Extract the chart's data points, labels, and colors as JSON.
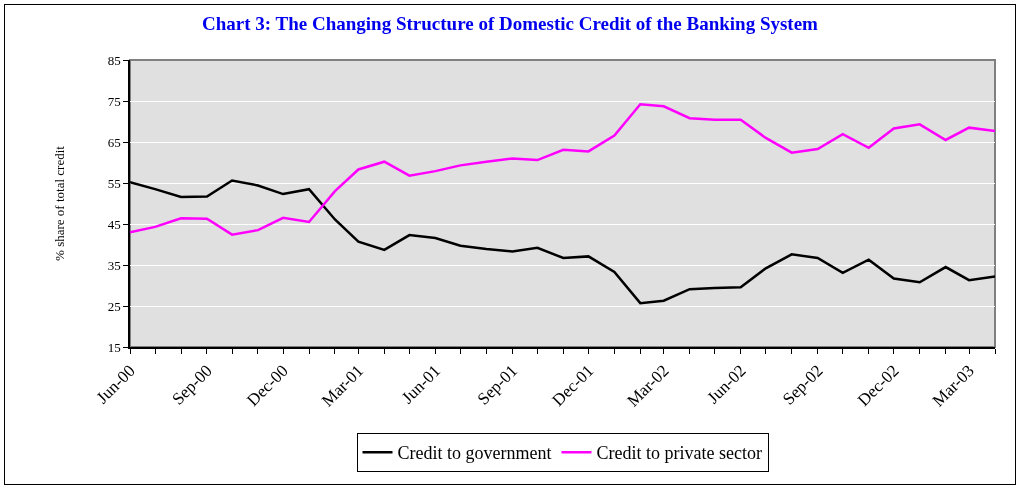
{
  "chart_data": {
    "type": "line",
    "title": "Chart 3: The Changing Structure of Domestic Credit of the Banking System",
    "ylabel": "% share of total credit",
    "x": [
      "2000-06",
      "2000-07",
      "2000-08",
      "2000-09",
      "2000-10",
      "2000-11",
      "2000-12",
      "2001-01",
      "2001-02",
      "2001-03",
      "2001-04",
      "2001-05",
      "2001-06",
      "2001-07",
      "2001-08",
      "2001-09",
      "2001-10",
      "2001-11",
      "2001-12",
      "2002-01",
      "2002-02",
      "2002-03",
      "2002-04",
      "2002-05",
      "2002-06",
      "2002-07",
      "2002-08",
      "2002-09",
      "2002-10",
      "2002-11",
      "2002-12",
      "2003-01",
      "2003-02",
      "2003-03",
      "2003-04"
    ],
    "series": [
      {
        "name": "Credit to government",
        "color": "#000000",
        "values": [
          55.2,
          53.5,
          51.6,
          51.7,
          55.6,
          54.4,
          52.3,
          53.5,
          46.1,
          40.7,
          38.7,
          42.3,
          41.6,
          39.7,
          38.9,
          38.3,
          39.2,
          36.7,
          37.1,
          33.3,
          25.7,
          26.3,
          29.1,
          29.4,
          29.6,
          34.2,
          37.6,
          36.7,
          33.1,
          36.3,
          31.7,
          30.8,
          34.5,
          31.3,
          32.2
        ]
      },
      {
        "name": "Credit to private sector",
        "color": "#ff00ff",
        "values": [
          43.0,
          44.3,
          46.4,
          46.3,
          42.4,
          43.5,
          46.5,
          45.5,
          53.0,
          58.3,
          60.2,
          56.8,
          57.9,
          59.3,
          60.2,
          61.0,
          60.6,
          63.1,
          62.7,
          66.6,
          74.2,
          73.7,
          70.8,
          70.4,
          70.4,
          66.0,
          62.4,
          63.3,
          66.9,
          63.6,
          68.3,
          69.3,
          65.5,
          68.5,
          67.7
        ]
      }
    ],
    "xlim": [
      "2000-06",
      "2003-04"
    ],
    "xticks": [
      {
        "value": "2000-06",
        "label": "Jun-00"
      },
      {
        "value": "2000-07",
        "label": null
      },
      {
        "value": "2000-08",
        "label": null
      },
      {
        "value": "2000-09",
        "label": "Sep-00"
      },
      {
        "value": "2000-10",
        "label": null
      },
      {
        "value": "2000-11",
        "label": null
      },
      {
        "value": "2000-12",
        "label": "Dec-00"
      },
      {
        "value": "2001-01",
        "label": null
      },
      {
        "value": "2001-02",
        "label": null
      },
      {
        "value": "2001-03",
        "label": "Mar-01"
      },
      {
        "value": "2001-04",
        "label": null
      },
      {
        "value": "2001-05",
        "label": null
      },
      {
        "value": "2001-06",
        "label": "Jun-01"
      },
      {
        "value": "2001-07",
        "label": null
      },
      {
        "value": "2001-08",
        "label": null
      },
      {
        "value": "2001-09",
        "label": "Sep-01"
      },
      {
        "value": "2001-10",
        "label": null
      },
      {
        "value": "2001-11",
        "label": null
      },
      {
        "value": "2001-12",
        "label": "Dec-01"
      },
      {
        "value": "2002-01",
        "label": null
      },
      {
        "value": "2002-02",
        "label": null
      },
      {
        "value": "2002-03",
        "label": "Mar-02"
      },
      {
        "value": "2002-04",
        "label": null
      },
      {
        "value": "2002-05",
        "label": null
      },
      {
        "value": "2002-06",
        "label": "Jun-02"
      },
      {
        "value": "2002-07",
        "label": null
      },
      {
        "value": "2002-08",
        "label": null
      },
      {
        "value": "2002-09",
        "label": "Sep-02"
      },
      {
        "value": "2002-10",
        "label": null
      },
      {
        "value": "2002-11",
        "label": null
      },
      {
        "value": "2002-12",
        "label": "Dec-02"
      },
      {
        "value": "2003-01",
        "label": null
      },
      {
        "value": "2003-02",
        "label": null
      },
      {
        "value": "2003-03",
        "label": "Mar-03"
      },
      {
        "value": "2003-04",
        "label": null
      }
    ],
    "ylim": [
      15,
      85
    ],
    "yticks": [
      15,
      25,
      35,
      45,
      55,
      65,
      75,
      85
    ],
    "grid": "y",
    "legend": "bottom",
    "marker": "none",
    "line_style": "solid"
  }
}
